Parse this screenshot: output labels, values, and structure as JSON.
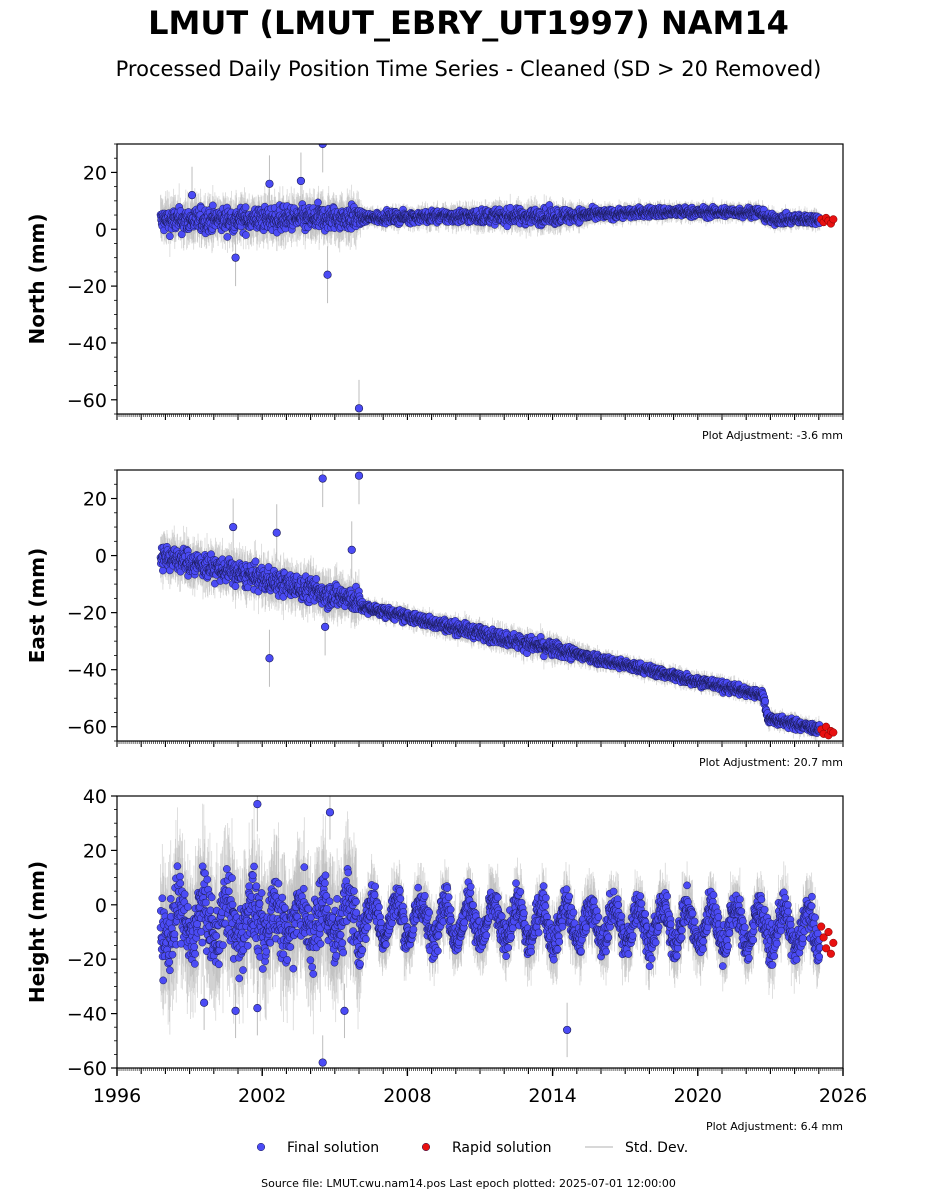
{
  "title": "LMUT (LMUT_EBRY_UT1997) NAM14",
  "subtitle": "Processed Daily Position Time Series - Cleaned (SD > 20 Removed)",
  "footer": "Source file: LMUT.cwu.nam14.pos  Last epoch plotted: 2025-07-01 12:00:00",
  "colors": {
    "final": "#4b4bf5",
    "rapid": "#e81111",
    "stddev": "#bdbdbd",
    "edge": "#1a1a55"
  },
  "legend": [
    {
      "label": "Final solution",
      "marker": "dot",
      "color": "#4b4bf5"
    },
    {
      "label": "Rapid solution",
      "marker": "dot",
      "color": "#e81111"
    },
    {
      "label": "Std. Dev.",
      "marker": "line",
      "color": "#cccccc"
    }
  ],
  "chart_data": [
    {
      "type": "scatter",
      "ylabel": "North (mm)",
      "xlim": [
        1996,
        2026
      ],
      "ylim": [
        -65,
        30
      ],
      "yticks": [
        -60,
        -40,
        -20,
        0,
        20
      ],
      "adjustment": "Plot Adjustment: -3.6 mm",
      "trend": [
        [
          1997.8,
          3
        ],
        [
          2006.0,
          4
        ],
        [
          2010,
          4.5
        ],
        [
          2014,
          4.5
        ],
        [
          2018,
          6
        ],
        [
          2022.5,
          6
        ],
        [
          2023.0,
          3.5
        ],
        [
          2025.5,
          3.5
        ]
      ],
      "scatter_sd": [
        [
          1997.8,
          3.0
        ],
        [
          2006.0,
          3.0
        ],
        [
          2006.1,
          1.2
        ],
        [
          2014,
          2.0
        ],
        [
          2016,
          1.2
        ],
        [
          2025.5,
          1.2
        ]
      ],
      "series": [
        {
          "name": "Final solution",
          "outliers": [
            [
              2004.5,
              30
            ],
            [
              2004.7,
              -16
            ],
            [
              2006.0,
              -63
            ],
            [
              2000.9,
              -10
            ],
            [
              2003.6,
              17
            ],
            [
              2002.3,
              16
            ],
            [
              1999.1,
              12
            ]
          ]
        },
        {
          "name": "Rapid solution",
          "points": [
            [
              2025.1,
              3.5
            ],
            [
              2025.2,
              2.5
            ],
            [
              2025.3,
              4.0
            ],
            [
              2025.4,
              3.0
            ],
            [
              2025.5,
              2.0
            ],
            [
              2025.6,
              3.5
            ]
          ]
        }
      ]
    },
    {
      "type": "scatter",
      "ylabel": "East (mm)",
      "xlim": [
        1996,
        2026
      ],
      "ylim": [
        -65,
        30
      ],
      "yticks": [
        -60,
        -40,
        -20,
        0,
        20
      ],
      "adjustment": "Plot Adjustment: 20.7 mm",
      "trend": [
        [
          1997.8,
          0
        ],
        [
          2006.0,
          -16
        ],
        [
          2006.1,
          -18
        ],
        [
          2022.7,
          -49
        ],
        [
          2022.9,
          -57
        ],
        [
          2025.5,
          -62
        ]
      ],
      "scatter_sd": [
        [
          1997.8,
          3.0
        ],
        [
          2006.0,
          3.0
        ],
        [
          2006.1,
          1.2
        ],
        [
          2014,
          1.8
        ],
        [
          2016,
          1.2
        ],
        [
          2025.5,
          1.2
        ]
      ],
      "series": [
        {
          "name": "Final solution",
          "outliers": [
            [
              2004.5,
              27
            ],
            [
              2006.0,
              28
            ],
            [
              2002.3,
              -36
            ],
            [
              2000.8,
              10
            ],
            [
              2002.6,
              8
            ],
            [
              2005.7,
              2
            ],
            [
              2004.6,
              -25
            ]
          ]
        },
        {
          "name": "Rapid solution",
          "points": [
            [
              2025.1,
              -61
            ],
            [
              2025.2,
              -62.5
            ],
            [
              2025.3,
              -60
            ],
            [
              2025.4,
              -63
            ],
            [
              2025.5,
              -61.5
            ],
            [
              2025.6,
              -62
            ]
          ]
        }
      ]
    },
    {
      "type": "scatter",
      "ylabel": "Height (mm)",
      "xlim": [
        1996,
        2026
      ],
      "ylim": [
        -60,
        40
      ],
      "yticks": [
        -60,
        -40,
        -20,
        0,
        20,
        40
      ],
      "xticks": [
        1996,
        2002,
        2008,
        2014,
        2020,
        2026
      ],
      "adjustment": "Plot Adjustment: 6.4 mm",
      "trend": [
        [
          1997.8,
          -7
        ],
        [
          2006.0,
          -5
        ],
        [
          2015,
          -7
        ],
        [
          2022,
          -8
        ],
        [
          2025.5,
          -10
        ]
      ],
      "seasonal_amplitude": 7,
      "scatter_sd": [
        [
          1997.8,
          9.0
        ],
        [
          2006.0,
          9.0
        ],
        [
          2006.1,
          4.5
        ],
        [
          2025.5,
          4.5
        ]
      ],
      "series": [
        {
          "name": "Final solution",
          "outliers": [
            [
              2001.8,
              37
            ],
            [
              2004.8,
              34
            ],
            [
              2004.5,
              -58
            ],
            [
              2014.6,
              -46
            ],
            [
              1999.6,
              -36
            ],
            [
              2001.8,
              -38
            ],
            [
              2000.9,
              -39
            ],
            [
              2005.4,
              -39
            ]
          ]
        },
        {
          "name": "Rapid solution",
          "points": [
            [
              2025.1,
              -8
            ],
            [
              2025.2,
              -12
            ],
            [
              2025.3,
              -16
            ],
            [
              2025.4,
              -10
            ],
            [
              2025.5,
              -18
            ],
            [
              2025.6,
              -14
            ]
          ]
        }
      ]
    }
  ]
}
